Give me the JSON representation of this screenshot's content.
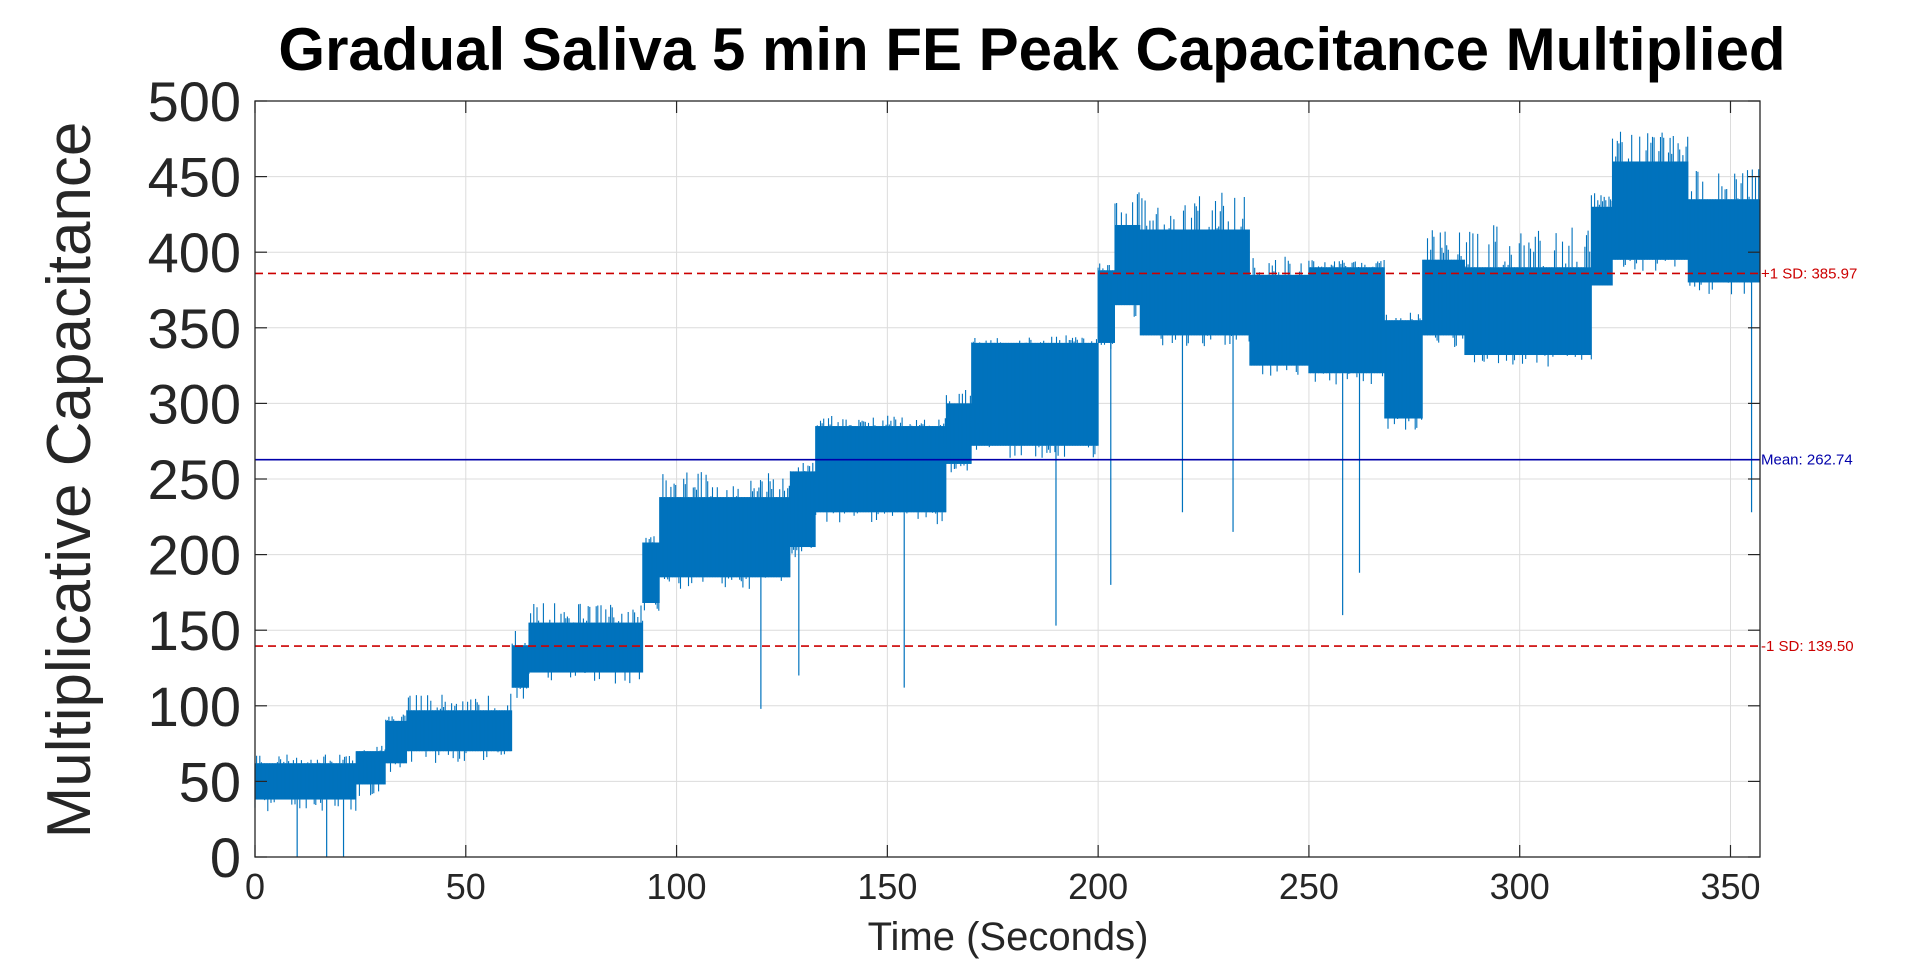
{
  "chart_data": {
    "type": "line",
    "title": "Gradual Saliva 5 min FE Peak Capacitance Multiplied",
    "xlabel": "Time (Seconds)",
    "ylabel": "Multiplicative Capacitance",
    "xlim": [
      0,
      357
    ],
    "ylim": [
      0,
      500
    ],
    "x_ticks": [
      0,
      50,
      100,
      150,
      200,
      250,
      300,
      350
    ],
    "x_tick_labels": [
      "0",
      "50",
      "100",
      "150",
      "200",
      "250",
      "300",
      "350"
    ],
    "y_ticks": [
      0,
      50,
      100,
      150,
      200,
      250,
      300,
      350,
      400,
      450,
      500
    ],
    "y_tick_labels": [
      "0",
      "50",
      "100",
      "150",
      "200",
      "250",
      "300",
      "350",
      "400",
      "450",
      "500"
    ],
    "grid": true,
    "series": [
      {
        "color": "#0072BD",
        "segments": [
          {
            "x_start": 0,
            "x_end": 24,
            "low": 38,
            "high": 62,
            "spike_high": 68
          },
          {
            "x_start": 24,
            "x_end": 31,
            "low": 48,
            "high": 70,
            "spike_high": 75
          },
          {
            "x_start": 31,
            "x_end": 36,
            "low": 62,
            "high": 90,
            "spike_high": 95
          },
          {
            "x_start": 36,
            "x_end": 61,
            "low": 70,
            "high": 97,
            "spike_high": 108
          },
          {
            "x_start": 61,
            "x_end": 65,
            "low": 112,
            "high": 140,
            "spike_high": 150
          },
          {
            "x_start": 65,
            "x_end": 92,
            "low": 122,
            "high": 155,
            "spike_high": 168
          },
          {
            "x_start": 92,
            "x_end": 96,
            "low": 168,
            "high": 208,
            "spike_high": 215
          },
          {
            "x_start": 96,
            "x_end": 127,
            "low": 185,
            "high": 238,
            "spike_high": 255
          },
          {
            "x_start": 127,
            "x_end": 133,
            "low": 205,
            "high": 255,
            "spike_high": 262
          },
          {
            "x_start": 133,
            "x_end": 164,
            "low": 228,
            "high": 285,
            "spike_high": 292
          },
          {
            "x_start": 164,
            "x_end": 170,
            "low": 260,
            "high": 300,
            "spike_high": 315
          },
          {
            "x_start": 170,
            "x_end": 200,
            "low": 272,
            "high": 340,
            "spike_high": 345
          },
          {
            "x_start": 200,
            "x_end": 204,
            "low": 340,
            "high": 388,
            "spike_high": 395
          },
          {
            "x_start": 204,
            "x_end": 210,
            "low": 365,
            "high": 418,
            "spike_high": 440
          },
          {
            "x_start": 210,
            "x_end": 236,
            "low": 345,
            "high": 415,
            "spike_high": 440
          },
          {
            "x_start": 236,
            "x_end": 250,
            "low": 325,
            "high": 385,
            "spike_high": 397
          },
          {
            "x_start": 250,
            "x_end": 268,
            "low": 320,
            "high": 390,
            "spike_high": 395
          },
          {
            "x_start": 268,
            "x_end": 277,
            "low": 290,
            "high": 355,
            "spike_high": 360
          },
          {
            "x_start": 277,
            "x_end": 287,
            "low": 345,
            "high": 395,
            "spike_high": 415
          },
          {
            "x_start": 287,
            "x_end": 317,
            "low": 332,
            "high": 390,
            "spike_high": 418
          },
          {
            "x_start": 317,
            "x_end": 322,
            "low": 378,
            "high": 430,
            "spike_high": 440
          },
          {
            "x_start": 322,
            "x_end": 340,
            "low": 395,
            "high": 460,
            "spike_high": 480
          },
          {
            "x_start": 340,
            "x_end": 357,
            "low": 380,
            "high": 435,
            "spike_high": 455
          }
        ],
        "dips": [
          {
            "x": 10,
            "y": 0
          },
          {
            "x": 17,
            "y": 0
          },
          {
            "x": 21,
            "y": 0
          },
          {
            "x": 120,
            "y": 98
          },
          {
            "x": 129,
            "y": 120
          },
          {
            "x": 154,
            "y": 112
          },
          {
            "x": 190,
            "y": 153
          },
          {
            "x": 203,
            "y": 180
          },
          {
            "x": 220,
            "y": 228
          },
          {
            "x": 232,
            "y": 215
          },
          {
            "x": 258,
            "y": 160
          },
          {
            "x": 262,
            "y": 188
          },
          {
            "x": 355,
            "y": 228
          }
        ]
      }
    ],
    "reference_lines": [
      {
        "value": 385.97,
        "label": "+1 SD: 385.97",
        "color": "#CC0000",
        "style": "dashed"
      },
      {
        "value": 262.74,
        "label": "Mean: 262.74",
        "color": "#0000AA",
        "style": "solid"
      },
      {
        "value": 139.5,
        "label": "-1 SD: 139.50",
        "color": "#CC0000",
        "style": "dashed"
      }
    ]
  }
}
